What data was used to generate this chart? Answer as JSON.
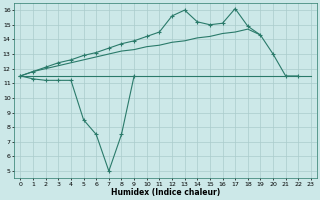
{
  "xlabel": "Humidex (Indice chaleur)",
  "line_color": "#2a7a6a",
  "bg_color": "#cce8e8",
  "grid_color": "#aacccc",
  "xlim": [
    -0.5,
    23.5
  ],
  "ylim": [
    4.5,
    16.5
  ],
  "yticks": [
    5,
    6,
    7,
    8,
    9,
    10,
    11,
    12,
    13,
    14,
    15,
    16
  ],
  "xticks": [
    0,
    1,
    2,
    3,
    4,
    5,
    6,
    7,
    8,
    9,
    10,
    11,
    12,
    13,
    14,
    15,
    16,
    17,
    18,
    19,
    20,
    21,
    22,
    23
  ],
  "line1_y": [
    11.5,
    11.5,
    11.5,
    11.5,
    11.5,
    11.5,
    11.5,
    11.5,
    11.5,
    11.5,
    11.5,
    11.5,
    11.5,
    11.5,
    11.5,
    11.5,
    11.5,
    11.5,
    11.5,
    11.5,
    11.5,
    11.5,
    11.5,
    11.5
  ],
  "line2_y": [
    11.5,
    11.8,
    12.0,
    12.2,
    12.4,
    12.6,
    12.8,
    13.0,
    13.2,
    13.3,
    13.5,
    13.6,
    13.8,
    13.9,
    14.1,
    14.2,
    14.4,
    14.5,
    14.7,
    14.3,
    null,
    null,
    null,
    null
  ],
  "line3_y": [
    11.5,
    11.8,
    12.1,
    12.4,
    12.6,
    12.9,
    13.1,
    13.4,
    13.7,
    13.9,
    14.2,
    14.5,
    15.6,
    16.0,
    15.2,
    15.0,
    15.1,
    16.1,
    14.9,
    14.3,
    13.0,
    11.5,
    11.5,
    null
  ],
  "line4_y": [
    11.5,
    11.3,
    11.2,
    11.2,
    11.2,
    8.5,
    7.5,
    5.0,
    7.5,
    11.5,
    null,
    null,
    null,
    null,
    null,
    null,
    null,
    null,
    null,
    null,
    null,
    null,
    null,
    null
  ]
}
